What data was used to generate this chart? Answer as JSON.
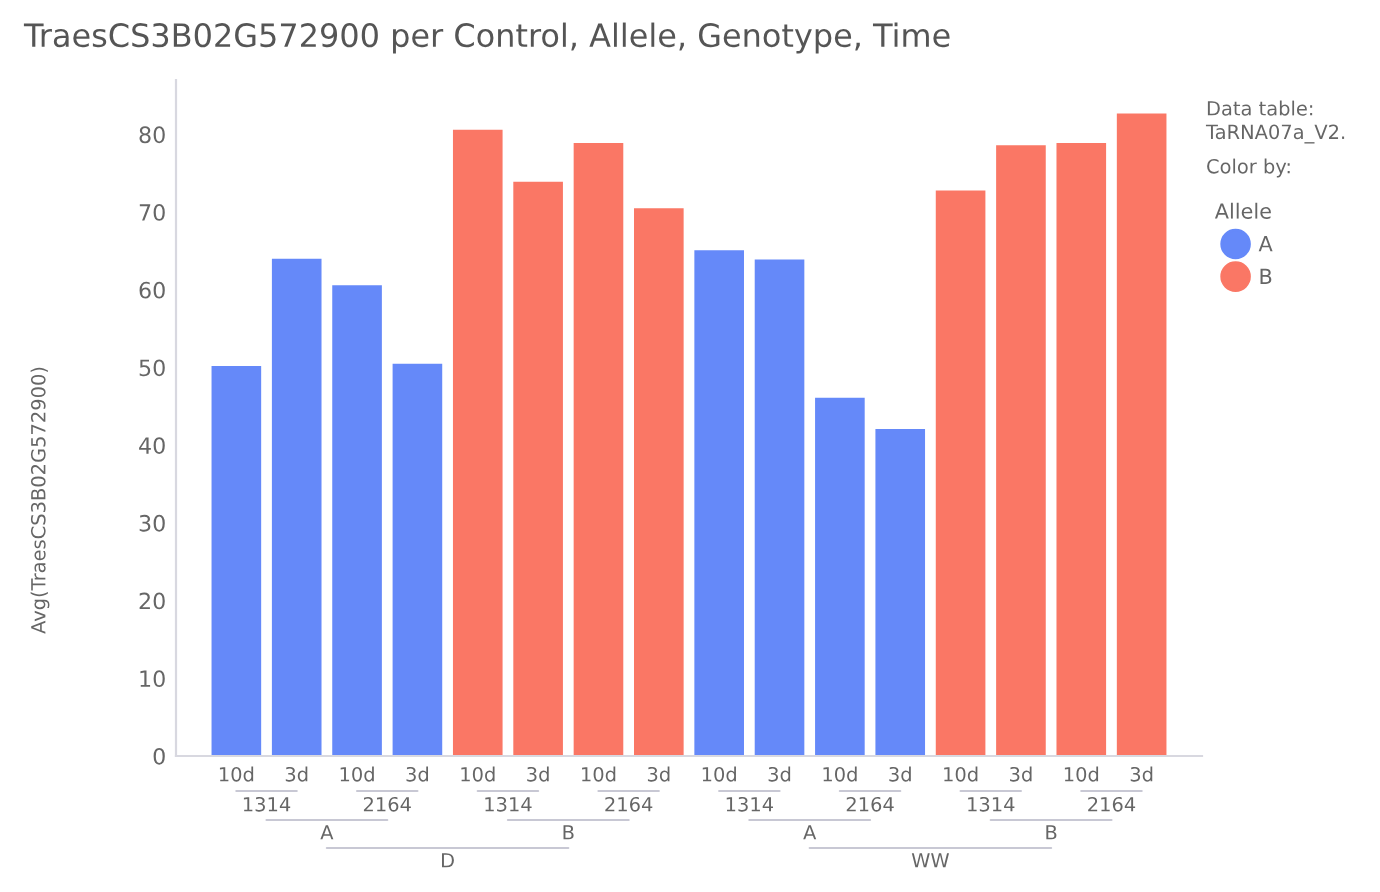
{
  "chart_data": {
    "type": "bar",
    "title": "TraesCS3B02G572900 per Control, Allele, Genotype, Time",
    "ylabel": "Avg(TraesCS3B02G572900)",
    "categories": [
      "10d",
      "3d",
      "10d",
      "3d",
      "10d",
      "3d",
      "10d",
      "3d",
      "10d",
      "3d",
      "10d",
      "3d",
      "10d",
      "3d",
      "10d",
      "3d"
    ],
    "series": [
      {
        "name": "A",
        "color": "#6589f9",
        "values": [
          50.3,
          64.1,
          60.7,
          50.6,
          null,
          null,
          null,
          null,
          65.2,
          64.0,
          46.2,
          42.2,
          null,
          null,
          null,
          null
        ]
      },
      {
        "name": "B",
        "color": "#fa7765",
        "values": [
          null,
          null,
          null,
          null,
          80.7,
          74.0,
          79.0,
          70.6,
          null,
          null,
          null,
          null,
          72.9,
          78.7,
          79.0,
          82.8
        ]
      }
    ],
    "ylim": [
      0,
      87
    ],
    "yticks": [
      0,
      10,
      20,
      30,
      40,
      50,
      60,
      70,
      80
    ],
    "grid": false,
    "legend": "right",
    "legend_title": "Allele",
    "annotations": [
      "1314",
      "2164",
      "1314",
      "2164",
      "1314",
      "2164",
      "1314",
      "2164",
      "A",
      "B",
      "A",
      "B",
      "D",
      "WW",
      "Data table:",
      "TaRNA07a_V2.",
      "Color by:"
    ]
  }
}
